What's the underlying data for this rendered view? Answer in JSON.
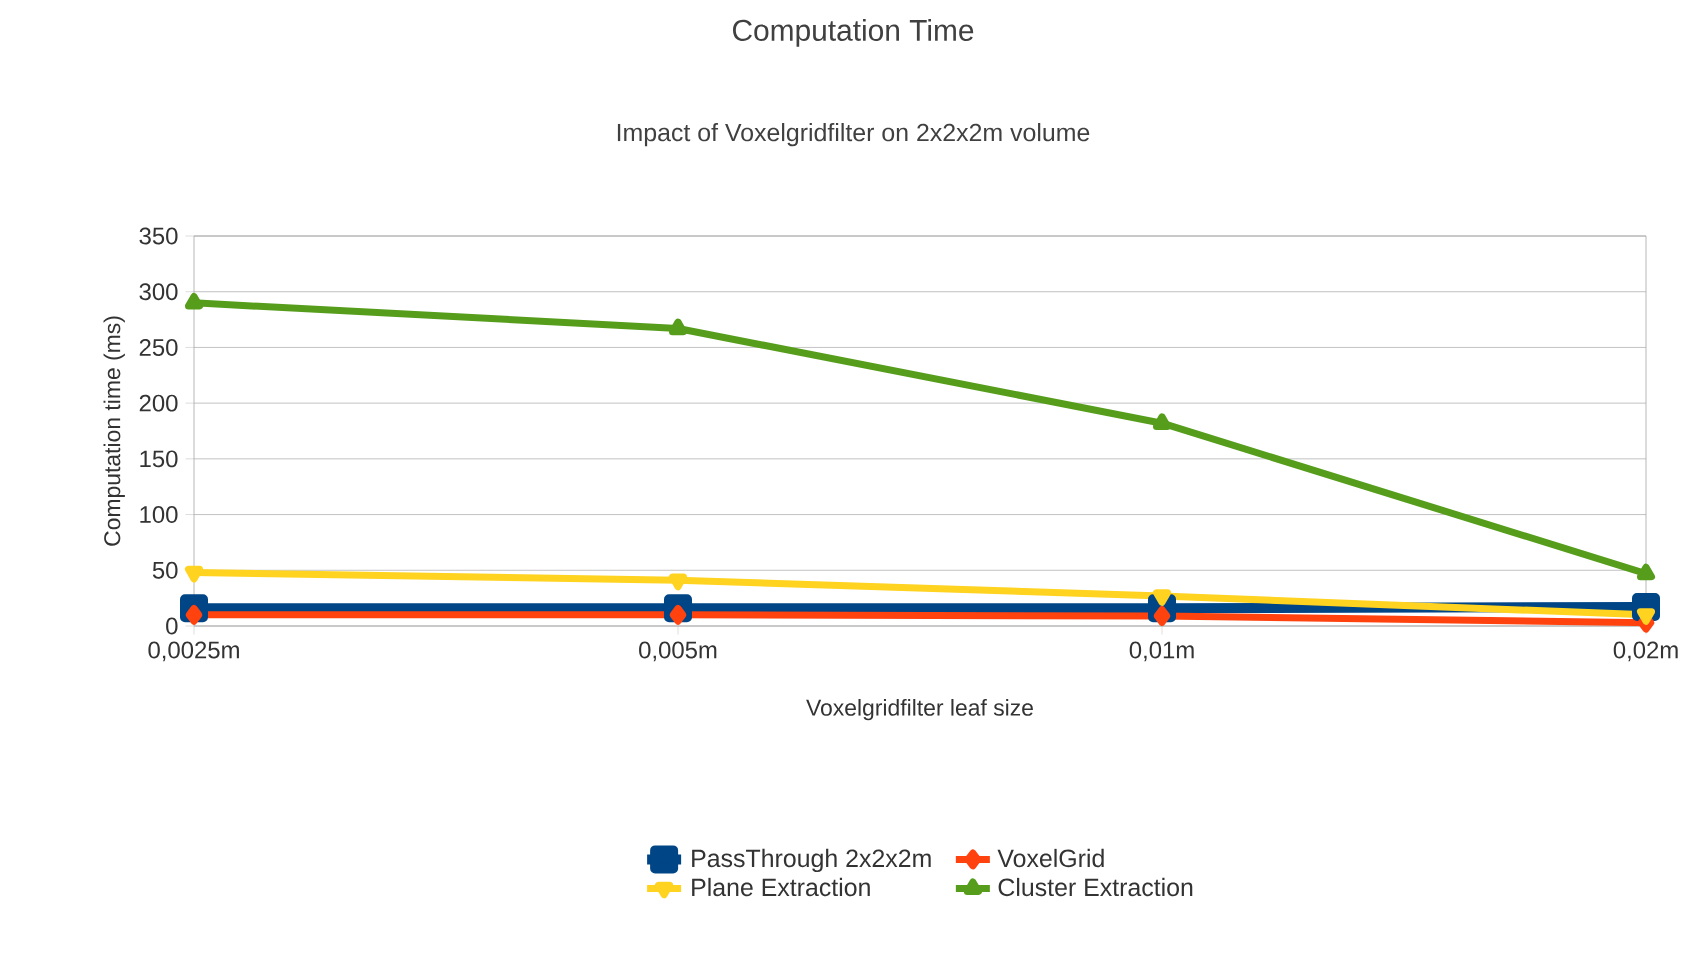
{
  "chart_data": {
    "type": "line",
    "title": "Computation Time",
    "subtitle": "Impact of Voxelgridfilter on 2x2x2m volume",
    "xlabel": "Voxelgridfilter leaf size",
    "ylabel": "Computation time (ms)",
    "categories": [
      "0,0025m",
      "0,005m",
      "0,01m",
      "0,02m"
    ],
    "ylim": [
      0,
      350
    ],
    "yticks": [
      0,
      50,
      100,
      150,
      200,
      250,
      300,
      350
    ],
    "grid": "y",
    "legend": "bottom",
    "line_style": "solid",
    "series": [
      {
        "name": "PassThrough 2x2x2m",
        "color": "#004586",
        "marker": "square",
        "values": [
          16,
          16,
          16,
          17
        ]
      },
      {
        "name": "VoxelGrid",
        "color": "#ff420e",
        "marker": "diamond",
        "values": [
          10,
          10,
          9,
          3
        ]
      },
      {
        "name": "Plane Extraction",
        "color": "#ffd320",
        "marker": "triangle down",
        "values": [
          48,
          41,
          27,
          10
        ]
      },
      {
        "name": "Cluster Extraction",
        "color": "#579d1c",
        "marker": "triangle",
        "values": [
          290,
          267,
          182,
          47
        ]
      }
    ]
  }
}
